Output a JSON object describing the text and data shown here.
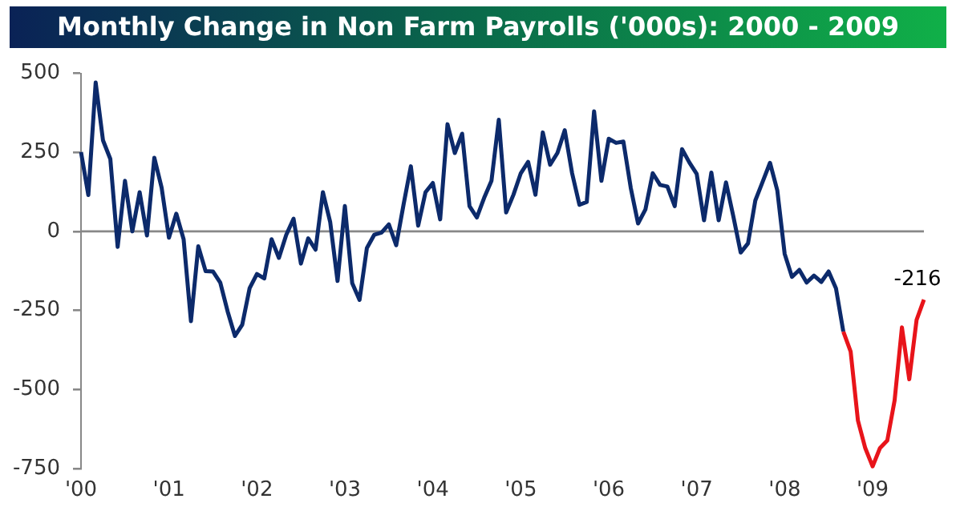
{
  "chart_data": {
    "type": "line",
    "title": "Monthly Change in Non Farm Payrolls ('000s): 2000 - 2009",
    "categories": [
      "'00",
      null,
      null,
      null,
      null,
      null,
      null,
      null,
      null,
      null,
      null,
      null,
      "'01",
      null,
      null,
      null,
      null,
      null,
      null,
      null,
      null,
      null,
      null,
      null,
      "'02",
      null,
      null,
      null,
      null,
      null,
      null,
      null,
      null,
      null,
      null,
      null,
      "'03",
      null,
      null,
      null,
      null,
      null,
      null,
      null,
      null,
      null,
      null,
      null,
      "'04",
      null,
      null,
      null,
      null,
      null,
      null,
      null,
      null,
      null,
      null,
      null,
      "'05",
      null,
      null,
      null,
      null,
      null,
      null,
      null,
      null,
      null,
      null,
      null,
      "'06",
      null,
      null,
      null,
      null,
      null,
      null,
      null,
      null,
      null,
      null,
      null,
      "'07",
      null,
      null,
      null,
      null,
      null,
      null,
      null,
      null,
      null,
      null,
      null,
      "'08",
      null,
      null,
      null,
      null,
      null,
      null,
      null,
      null,
      null,
      null,
      null,
      "'09",
      null,
      null,
      null,
      null,
      null,
      null,
      null
    ],
    "series": [
      {
        "color": "#0c2a6b",
        "values": [
          251,
          115,
          471,
          288,
          229,
          -49,
          160,
          0,
          124,
          -13,
          233,
          138,
          -20,
          56,
          -25,
          -284,
          -47,
          -126,
          -127,
          -162,
          -253,
          -331,
          -295,
          -180,
          -135,
          -149,
          -25,
          -84,
          -11,
          40,
          -102,
          -22,
          -58,
          124,
          29,
          -157,
          80,
          -164,
          -217,
          -53,
          -11,
          -4,
          22,
          -44,
          84,
          206,
          18,
          124,
          153,
          38,
          339,
          248,
          309,
          80,
          44,
          106,
          160,
          353,
          60,
          116,
          184,
          220,
          116,
          313,
          211,
          248,
          320,
          184,
          84,
          93,
          380,
          160,
          293,
          280,
          284,
          138,
          25,
          69,
          184,
          147,
          142,
          80,
          260,
          218,
          182,
          35,
          186,
          35,
          155,
          47,
          -67,
          -38,
          98,
          157,
          217,
          129,
          -71,
          -144,
          -122,
          -162,
          -140,
          -160,
          -127,
          -180,
          -317,
          null,
          null,
          null,
          null,
          null,
          null,
          null,
          null,
          null,
          null,
          null
        ]
      },
      {
        "color": "#e8141a",
        "values": [
          null,
          null,
          null,
          null,
          null,
          null,
          null,
          null,
          null,
          null,
          null,
          null,
          null,
          null,
          null,
          null,
          null,
          null,
          null,
          null,
          null,
          null,
          null,
          null,
          null,
          null,
          null,
          null,
          null,
          null,
          null,
          null,
          null,
          null,
          null,
          null,
          null,
          null,
          null,
          null,
          null,
          null,
          null,
          null,
          null,
          null,
          null,
          null,
          null,
          null,
          null,
          null,
          null,
          null,
          null,
          null,
          null,
          null,
          null,
          null,
          null,
          null,
          null,
          null,
          null,
          null,
          null,
          null,
          null,
          null,
          null,
          null,
          null,
          null,
          null,
          null,
          null,
          null,
          null,
          null,
          null,
          null,
          null,
          null,
          null,
          null,
          null,
          null,
          null,
          null,
          null,
          null,
          null,
          null,
          null,
          null,
          null,
          null,
          null,
          null,
          null,
          null,
          null,
          null,
          -317,
          -380,
          -599,
          -686,
          -744,
          -686,
          -662,
          -535,
          -304,
          -468,
          -280,
          -216
        ],
        "value_labels": [
          null,
          null,
          null,
          null,
          null,
          null,
          null,
          null,
          null,
          null,
          null,
          null,
          null,
          null,
          null,
          null,
          null,
          null,
          null,
          null,
          null,
          null,
          null,
          null,
          null,
          null,
          null,
          null,
          null,
          null,
          null,
          null,
          null,
          null,
          null,
          null,
          null,
          null,
          null,
          null,
          null,
          null,
          null,
          null,
          null,
          null,
          null,
          null,
          null,
          null,
          null,
          null,
          null,
          null,
          null,
          null,
          null,
          null,
          null,
          null,
          null,
          null,
          null,
          null,
          null,
          null,
          null,
          null,
          null,
          null,
          null,
          null,
          null,
          null,
          null,
          null,
          null,
          null,
          null,
          null,
          null,
          null,
          null,
          null,
          null,
          null,
          null,
          null,
          null,
          null,
          null,
          null,
          null,
          null,
          null,
          null,
          null,
          null,
          null,
          null,
          null,
          null,
          null,
          null,
          null,
          null,
          null,
          null,
          null,
          null,
          null,
          null,
          null,
          null,
          null,
          "-216"
        ]
      }
    ],
    "ylim": [
      -750,
      500
    ],
    "yticks": [
      -750,
      -500,
      -250,
      0,
      250,
      500
    ],
    "grid": false,
    "ref_lines": [
      {
        "axis": "y",
        "value": 0,
        "color": "#888888"
      }
    ],
    "legend": false,
    "marker": "none",
    "line_style": "solid"
  }
}
